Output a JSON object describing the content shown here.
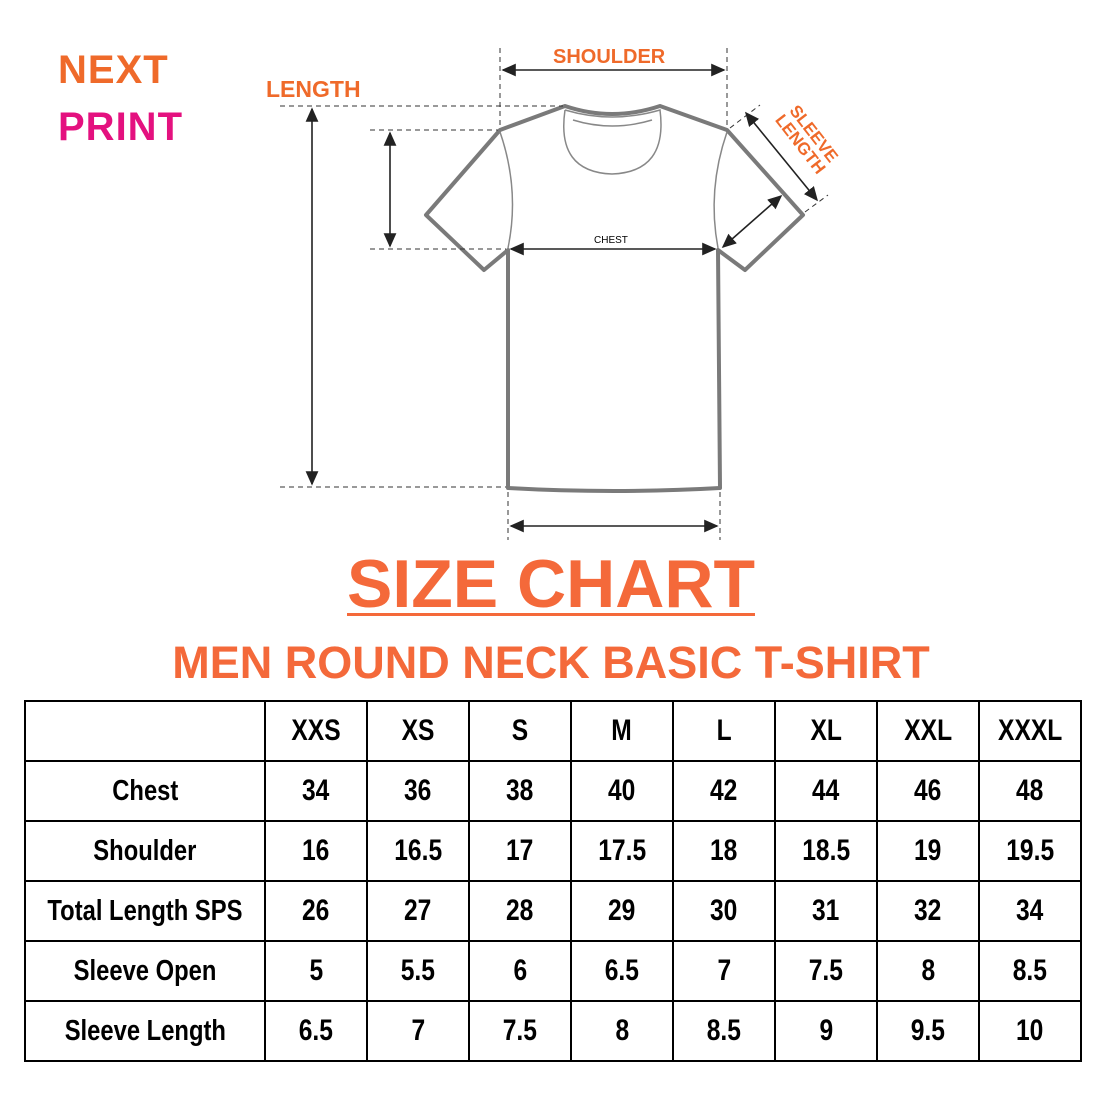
{
  "logo": {
    "line1": "NEXT",
    "line2": "PRINT",
    "colors": {
      "orange": "#ef6a2a",
      "magenta": "#e4117f"
    }
  },
  "diagram": {
    "shoulder_label": "SHOULDER",
    "length_label": "LENGTH",
    "sleeve_length_label": "SLEEVE LENGTH",
    "chest_label": "CHEST"
  },
  "title": "SIZE CHART",
  "subtitle": "MEN ROUND NECK BASIC T-SHIRT",
  "accent_color": "#f4693a",
  "table": {
    "sizes": [
      "XXS",
      "XS",
      "S",
      "M",
      "L",
      "XL",
      "XXL",
      "XXXL"
    ],
    "rows": [
      {
        "label": "Chest",
        "values": [
          "34",
          "36",
          "38",
          "40",
          "42",
          "44",
          "46",
          "48"
        ]
      },
      {
        "label": "Shoulder",
        "values": [
          "16",
          "16.5",
          "17",
          "17.5",
          "18",
          "18.5",
          "19",
          "19.5"
        ]
      },
      {
        "label": "Total Length SPS",
        "values": [
          "26",
          "27",
          "28",
          "29",
          "30",
          "31",
          "32",
          "34"
        ]
      },
      {
        "label": "Sleeve Open",
        "values": [
          "5",
          "5.5",
          "6",
          "6.5",
          "7",
          "7.5",
          "8",
          "8.5"
        ]
      },
      {
        "label": "Sleeve Length",
        "values": [
          "6.5",
          "7",
          "7.5",
          "8",
          "8.5",
          "9",
          "9.5",
          "10"
        ]
      }
    ]
  }
}
